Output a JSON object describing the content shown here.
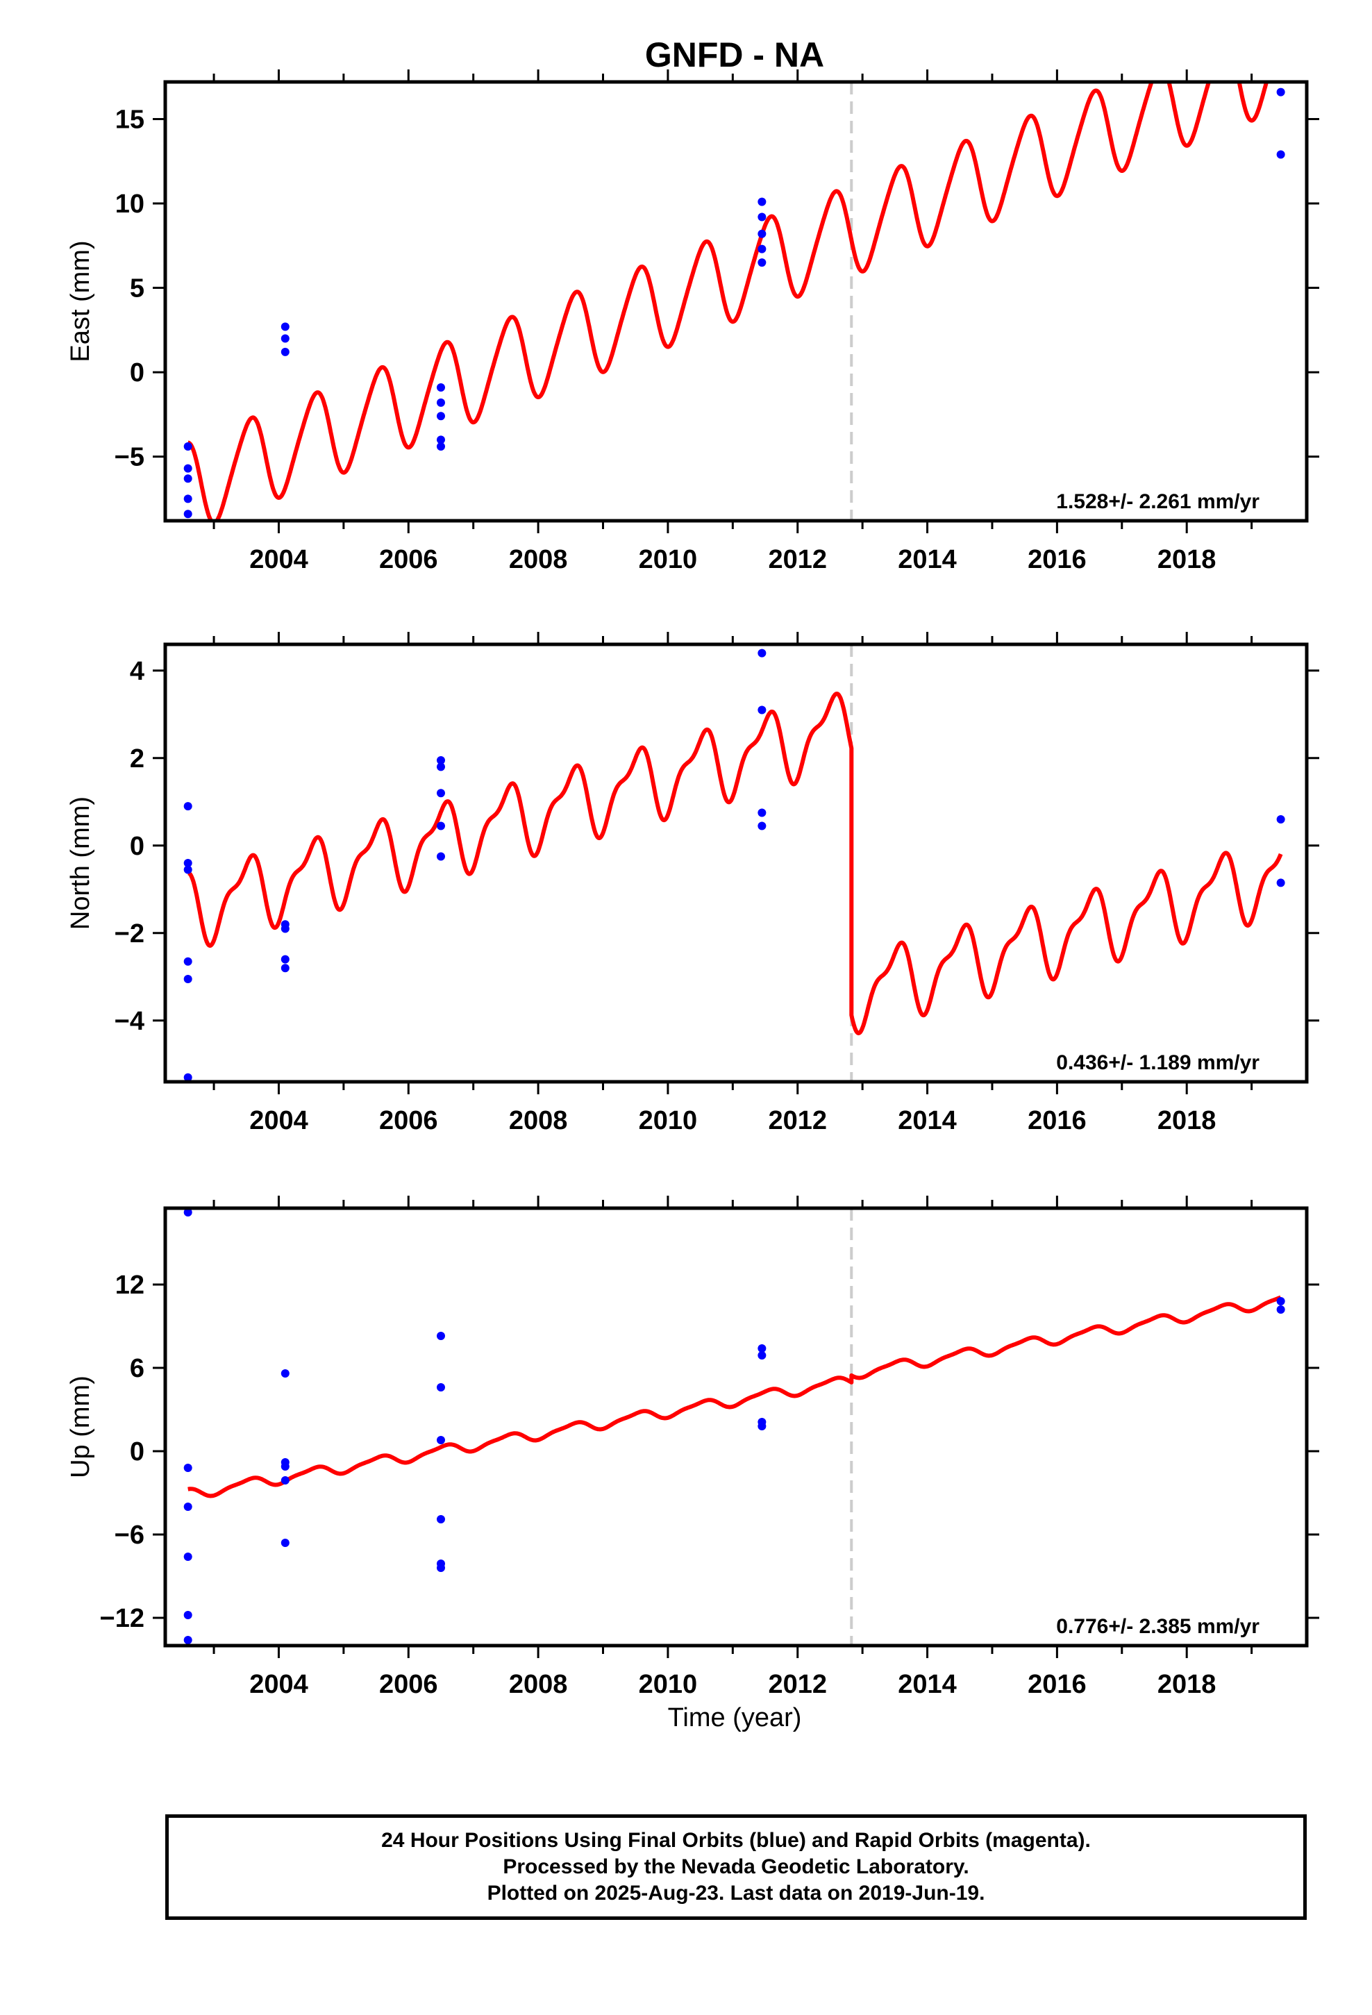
{
  "title": "GNFD - NA",
  "xlabel": "Time (year)",
  "colors": {
    "model": "#ff0000",
    "points": "#0000ff",
    "offset_line": "#cccccc",
    "frame": "#000000"
  },
  "offset_epoch": 2012.83,
  "chart_data": [
    {
      "type": "scatter",
      "name": "east",
      "ylabel": "East (mm)",
      "rate_label": "1.528+/- 2.261 mm/yr",
      "xlim": [
        2002.25,
        2019.85
      ],
      "ylim": [
        -8.8,
        17.2
      ],
      "x_ticks": [
        2004,
        2006,
        2008,
        2010,
        2012,
        2014,
        2016,
        2018
      ],
      "x_tick_labels": [
        "2004",
        "2006",
        "2008",
        "2010",
        "2012",
        "2014",
        "2016",
        "2018"
      ],
      "y_ticks": [
        -5,
        0,
        5,
        10,
        15
      ],
      "y_tick_labels": [
        "−5",
        "0",
        "5",
        "10",
        "15"
      ],
      "points": [
        [
          2002.6,
          -4.4
        ],
        [
          2002.6,
          -5.7
        ],
        [
          2002.6,
          -6.3
        ],
        [
          2002.6,
          -7.5
        ],
        [
          2002.6,
          -8.4
        ],
        [
          2004.1,
          2.7
        ],
        [
          2004.1,
          2.0
        ],
        [
          2004.1,
          1.2
        ],
        [
          2006.5,
          -0.9
        ],
        [
          2006.5,
          -1.8
        ],
        [
          2006.5,
          -2.6
        ],
        [
          2006.5,
          -4.0
        ],
        [
          2006.5,
          -4.4
        ],
        [
          2011.45,
          10.1
        ],
        [
          2011.45,
          9.2
        ],
        [
          2011.45,
          8.2
        ],
        [
          2011.45,
          7.3
        ],
        [
          2011.45,
          6.5
        ],
        [
          2019.45,
          16.6
        ],
        [
          2019.45,
          12.9
        ]
      ],
      "model": {
        "t0": 2002.6,
        "t1": 2019.45,
        "ref": 2002.6,
        "start": -6.8,
        "slope": 1.49,
        "annual": 2.6,
        "annual_phase": 1.9,
        "semiannual": 0.35,
        "semiannual_phase": 0.5,
        "offset": 0.0
      }
    },
    {
      "type": "scatter",
      "name": "north",
      "ylabel": "North (mm)",
      "rate_label": "0.436+/- 1.189 mm/yr",
      "xlim": [
        2002.25,
        2019.85
      ],
      "ylim": [
        -5.4,
        4.6
      ],
      "x_ticks": [
        2004,
        2006,
        2008,
        2010,
        2012,
        2014,
        2016,
        2018
      ],
      "x_tick_labels": [
        "2004",
        "2006",
        "2008",
        "2010",
        "2012",
        "2014",
        "2016",
        "2018"
      ],
      "y_ticks": [
        -4,
        -2,
        0,
        2,
        4
      ],
      "y_tick_labels": [
        "−4",
        "−2",
        "0",
        "2",
        "4"
      ],
      "points": [
        [
          2002.6,
          0.9
        ],
        [
          2002.6,
          -0.4
        ],
        [
          2002.6,
          -0.55
        ],
        [
          2002.6,
          -2.65
        ],
        [
          2002.6,
          -3.05
        ],
        [
          2002.6,
          -5.3
        ],
        [
          2004.1,
          -1.8
        ],
        [
          2004.1,
          -1.9
        ],
        [
          2004.1,
          -2.6
        ],
        [
          2004.1,
          -2.8
        ],
        [
          2006.5,
          1.95
        ],
        [
          2006.5,
          1.8
        ],
        [
          2006.5,
          1.2
        ],
        [
          2006.5,
          0.45
        ],
        [
          2006.5,
          -0.25
        ],
        [
          2011.45,
          4.4
        ],
        [
          2011.45,
          3.1
        ],
        [
          2011.45,
          0.75
        ],
        [
          2011.45,
          0.45
        ],
        [
          2019.45,
          0.6
        ],
        [
          2019.45,
          -0.85
        ]
      ],
      "model": {
        "t0": 2002.6,
        "t1": 2019.45,
        "ref": 2002.6,
        "start": -1.45,
        "slope": 0.41,
        "annual": 0.75,
        "annual_phase": 2.2,
        "semiannual": 0.3,
        "semiannual_phase": 0.8,
        "offset": -6.1
      }
    },
    {
      "type": "scatter",
      "name": "up",
      "ylabel": "Up (mm)",
      "rate_label": "0.776+/- 2.385 mm/yr",
      "xlim": [
        2002.25,
        2019.85
      ],
      "ylim": [
        -14.0,
        17.5
      ],
      "x_ticks": [
        2004,
        2006,
        2008,
        2010,
        2012,
        2014,
        2016,
        2018
      ],
      "x_tick_labels": [
        "2004",
        "2006",
        "2008",
        "2010",
        "2012",
        "2014",
        "2016",
        "2018"
      ],
      "y_ticks": [
        -12,
        -6,
        0,
        6,
        12
      ],
      "y_tick_labels": [
        "−12",
        "−6",
        "0",
        "6",
        "12"
      ],
      "points": [
        [
          2002.6,
          17.2
        ],
        [
          2002.6,
          -1.2
        ],
        [
          2002.6,
          -4.0
        ],
        [
          2002.6,
          -7.6
        ],
        [
          2002.6,
          -11.8
        ],
        [
          2002.6,
          -13.6
        ],
        [
          2004.1,
          5.6
        ],
        [
          2004.1,
          -0.8
        ],
        [
          2004.1,
          -1.1
        ],
        [
          2004.1,
          -2.1
        ],
        [
          2004.1,
          -6.6
        ],
        [
          2006.5,
          8.3
        ],
        [
          2006.5,
          4.6
        ],
        [
          2006.5,
          0.8
        ],
        [
          2006.5,
          -4.9
        ],
        [
          2006.5,
          -8.1
        ],
        [
          2006.5,
          -8.4
        ],
        [
          2011.45,
          7.4
        ],
        [
          2011.45,
          6.9
        ],
        [
          2011.45,
          2.1
        ],
        [
          2011.45,
          1.8
        ],
        [
          2019.45,
          10.8
        ],
        [
          2019.45,
          10.2
        ]
      ],
      "model": {
        "t0": 2002.6,
        "t1": 2019.45,
        "ref": 2002.6,
        "start": -3.1,
        "slope": 0.8,
        "annual": 0.35,
        "annual_phase": 2.0,
        "semiannual": 0.1,
        "semiannual_phase": 0.5,
        "offset": 0.5
      }
    }
  ],
  "caption": {
    "line1": "24 Hour Positions Using Final Orbits (blue) and Rapid Orbits (magenta).",
    "line2": "Processed by the Nevada Geodetic Laboratory.",
    "line3": "Plotted on 2025-Aug-23. Last data on 2019-Jun-19."
  }
}
